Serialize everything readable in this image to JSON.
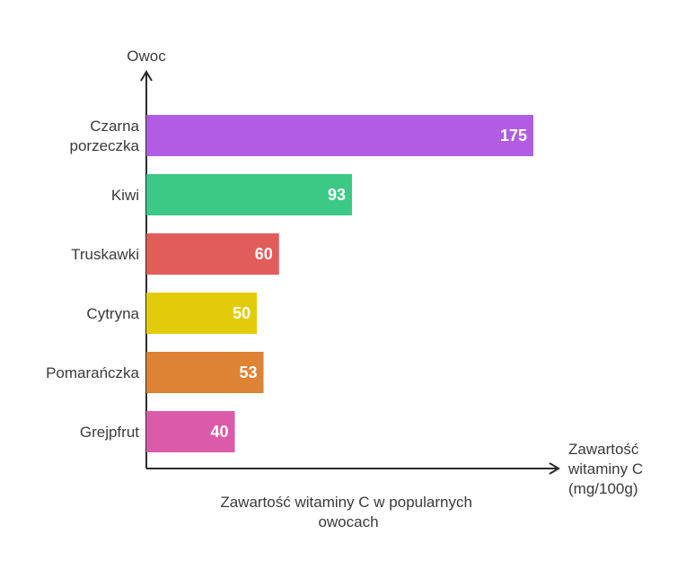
{
  "chart_data": {
    "type": "bar",
    "orientation": "horizontal",
    "categories": [
      [
        "Czarna",
        "porzeczka"
      ],
      [
        "Kiwi"
      ],
      [
        "Truskawki"
      ],
      [
        "Cytryna"
      ],
      [
        "Pomarańczka"
      ],
      [
        "Grejpfrut"
      ]
    ],
    "values": [
      175,
      93,
      60,
      50,
      53,
      40
    ],
    "colors": [
      "#b15ce3",
      "#3cc887",
      "#e15d5a",
      "#e2cc0a",
      "#de8233",
      "#db5aaa"
    ],
    "ylabel": "Owoc",
    "xlabel": [
      "Zawartość",
      "witaminy C",
      "(mg/100g)"
    ],
    "title": [
      "Zawartość witaminy C w popularnych",
      "owocach"
    ],
    "xlim": [
      0,
      175
    ],
    "grid": false,
    "data_labels": true
  }
}
